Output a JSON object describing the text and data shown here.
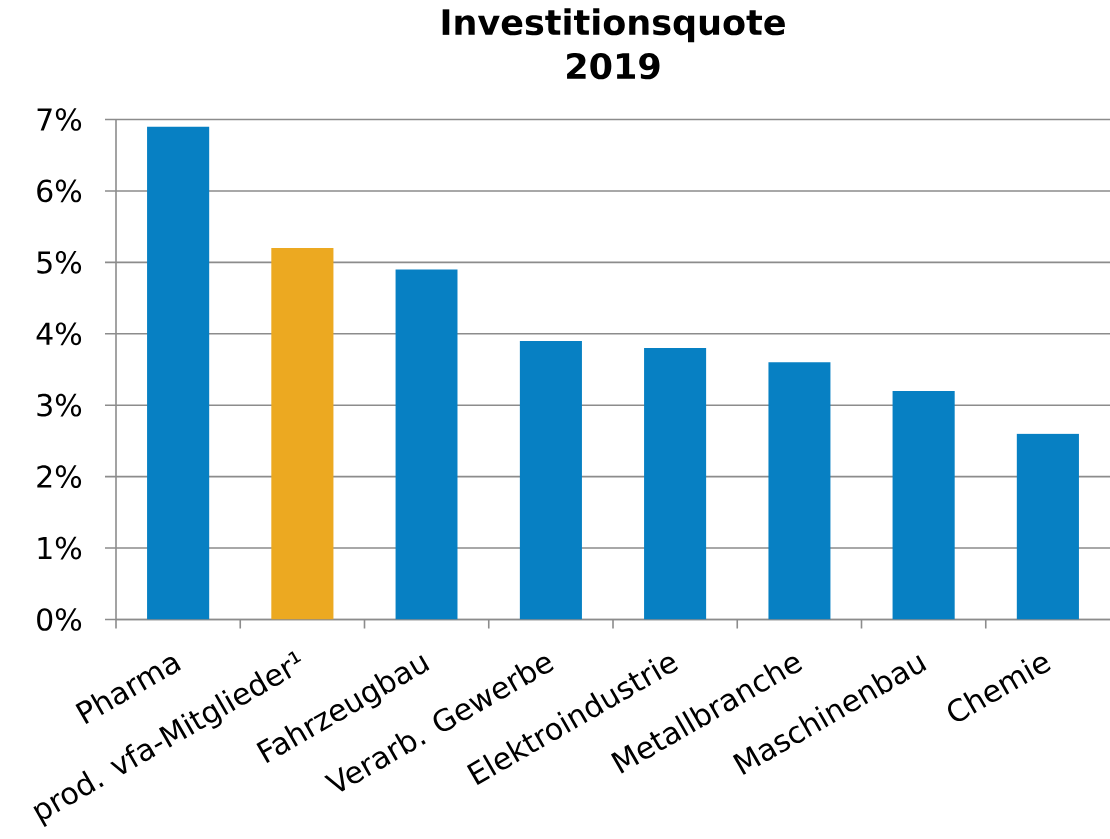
{
  "chart_data": {
    "type": "bar",
    "title": "Investitionsquote 2019",
    "categories": [
      "Pharma",
      "prod. vfa-Mitglieder¹",
      "Fahrzeugbau",
      "Verarb. Gewerbe",
      "Elektroindustrie",
      "Metallbranche",
      "Maschinenbau",
      "Chemie"
    ],
    "values": [
      6.9,
      5.2,
      4.9,
      3.9,
      3.8,
      3.6,
      3.2,
      2.6
    ],
    "colors": [
      "#0780c3",
      "#eca921",
      "#0780c3",
      "#0780c3",
      "#0780c3",
      "#0780c3",
      "#0780c3",
      "#0780c3"
    ],
    "ylim": [
      0,
      7
    ],
    "yticks": [
      {
        "value": 0,
        "label": "0%"
      },
      {
        "value": 1,
        "label": "1%"
      },
      {
        "value": 2,
        "label": "2%"
      },
      {
        "value": 3,
        "label": "3%"
      },
      {
        "value": 4,
        "label": "4%"
      },
      {
        "value": 5,
        "label": "5%"
      },
      {
        "value": 6,
        "label": "6%"
      },
      {
        "value": 7,
        "label": "7%"
      }
    ],
    "grid": "y"
  }
}
